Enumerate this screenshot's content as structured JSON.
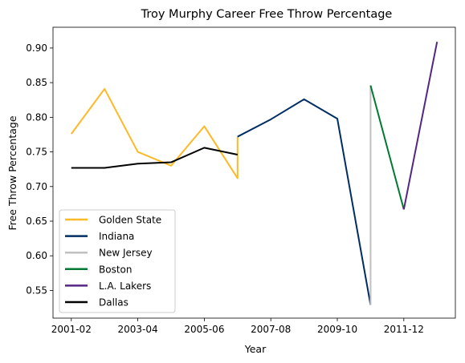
{
  "chart_data": {
    "type": "line",
    "title": "Troy Murphy Career Free Throw Percentage",
    "xlabel": "Year",
    "ylabel": "Free Throw Percentage",
    "x_ticks": [
      "2001-02",
      "2003-04",
      "2005-06",
      "2007-08",
      "2009-10",
      "2011-12"
    ],
    "y_ticks": [
      "0.55",
      "0.60",
      "0.65",
      "0.70",
      "0.75",
      "0.80",
      "0.85",
      "0.90"
    ],
    "ylim": [
      0.51,
      0.93
    ],
    "legend_position": "lower-left",
    "series": [
      {
        "name": "Golden State",
        "color": "#FDB927",
        "points": [
          {
            "x": "2001-02",
            "y": 0.776
          },
          {
            "x": "2002-03",
            "y": 0.841
          },
          {
            "x": "2003-04",
            "y": 0.75
          },
          {
            "x": "2004-05",
            "y": 0.73
          },
          {
            "x": "2005-06",
            "y": 0.787
          },
          {
            "x": "2006-07",
            "y": 0.712
          },
          {
            "x": "2006-07",
            "y": 0.772
          }
        ]
      },
      {
        "name": "Indiana",
        "color": "#002D62",
        "points": [
          {
            "x": "2006-07",
            "y": 0.772
          },
          {
            "x": "2007-08",
            "y": 0.797
          },
          {
            "x": "2008-09",
            "y": 0.826
          },
          {
            "x": "2009-10",
            "y": 0.798
          },
          {
            "x": "2010-11",
            "y": 0.529
          }
        ]
      },
      {
        "name": "New Jersey",
        "color": "#C0C0C0",
        "points": [
          {
            "x": "2010-11",
            "y": 0.529
          },
          {
            "x": "2010-11",
            "y": 0.846
          }
        ]
      },
      {
        "name": "Boston",
        "color": "#007A33",
        "points": [
          {
            "x": "2010-11",
            "y": 0.846
          },
          {
            "x": "2011-12",
            "y": 0.667
          }
        ]
      },
      {
        "name": "L.A. Lakers",
        "color": "#552583",
        "points": [
          {
            "x": "2011-12",
            "y": 0.667
          },
          {
            "x": "2012-13",
            "y": 0.909
          }
        ]
      },
      {
        "name": "Dallas",
        "color": "#000000",
        "points": [
          {
            "x": "2001-02",
            "y": 0.727
          },
          {
            "x": "2002-03",
            "y": 0.727
          },
          {
            "x": "2003-04",
            "y": 0.733
          },
          {
            "x": "2004-05",
            "y": 0.735
          },
          {
            "x": "2005-06",
            "y": 0.756
          },
          {
            "x": "2006-07",
            "y": 0.746
          }
        ]
      }
    ]
  }
}
